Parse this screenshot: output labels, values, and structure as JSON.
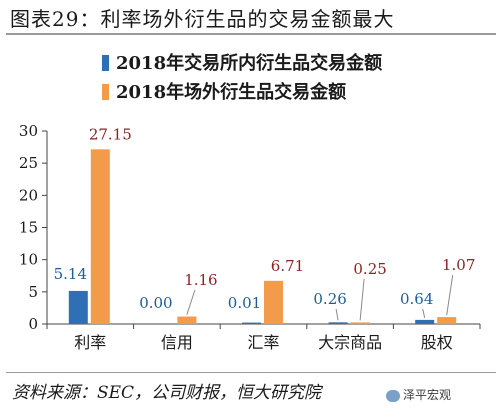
{
  "header": {
    "title": "图表29：利率场外衍生品的交易金额最大"
  },
  "footer": {
    "source": "资料来源：SEC，公司财报，恒大研究院",
    "watermark": "泽平宏观"
  },
  "colors": {
    "exchange": "#2f6fb5",
    "otc": "#f29b4b",
    "label_exchange": "#1f5c98",
    "label_otc": "#8b2323",
    "axis": "#444444"
  },
  "chart_data": {
    "type": "bar",
    "categories": [
      "利率",
      "信用",
      "汇率",
      "大宗商品",
      "股权"
    ],
    "series": [
      {
        "name": "2018年交易所内衍生品交易金额",
        "values": [
          5.14,
          0.0,
          0.01,
          0.26,
          0.64
        ]
      },
      {
        "name": "2018年场外衍生品交易金额",
        "values": [
          27.15,
          1.16,
          6.71,
          0.25,
          1.07
        ]
      }
    ],
    "data_labels": [
      [
        "5.14",
        "0.00",
        "0.01",
        "0.26",
        "0.64"
      ],
      [
        "27.15",
        "1.16",
        "6.71",
        "0.25",
        "1.07"
      ]
    ],
    "yticks": [
      "0",
      "5",
      "10",
      "15",
      "20",
      "25",
      "30"
    ],
    "ylim": [
      0,
      30
    ],
    "legend_position": "top-left",
    "grid": false
  }
}
